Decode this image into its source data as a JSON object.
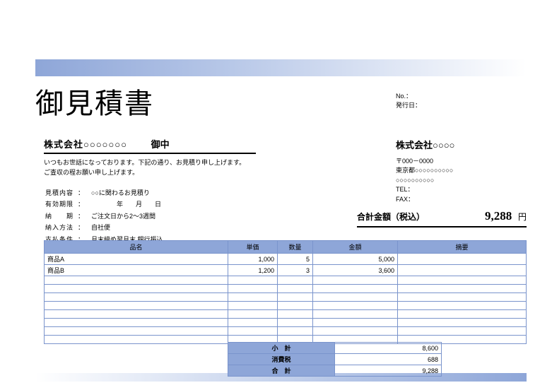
{
  "title": "御見積書",
  "meta": {
    "no_label": "No.：",
    "date_label": "発行日："
  },
  "client": {
    "name": "株式会社○○○○○○○",
    "honorific": "御中"
  },
  "greeting": {
    "line1": "いつもお世話になっております。下記の通り、お見積り申し上げます。",
    "line2": "ご査収の程お願い申し上げます。"
  },
  "terms": {
    "subject_label": "見積内容",
    "subject_value": "○○に関わるお見積り",
    "valid_label": "有効期限",
    "valid_value": "　　　　年　　月　　日",
    "delivery_label": "納　　期",
    "delivery_value": "ご注文日から2～3週間",
    "method_label": "納入方法",
    "method_value": "自社便",
    "payment_label": "支払条件",
    "payment_value": "月末締め翌月末 銀行振込"
  },
  "sender": {
    "name": "株式会社○○○○",
    "postal": "〒000－0000",
    "addr1": "東京都○○○○○○○○○○",
    "addr2": "○○○○○○○○○○",
    "tel": "TEL：",
    "fax": "FAX："
  },
  "total": {
    "label": "合計金額（税込）",
    "amount": "9,288",
    "yen": "円"
  },
  "columns": {
    "name": "品名",
    "unit": "単価",
    "qty": "数量",
    "amount": "金額",
    "note": "摘要"
  },
  "items": [
    {
      "name": "商品A",
      "unit": "1,000",
      "qty": "5",
      "amount": "5,000",
      "note": ""
    },
    {
      "name": "商品B",
      "unit": "1,200",
      "qty": "3",
      "amount": "3,600",
      "note": ""
    }
  ],
  "empty_rows": 8,
  "totals": {
    "subtotal_label": "小　計",
    "subtotal_value": "8,600",
    "tax_label": "消費税",
    "tax_value": "688",
    "grand_label": "合　計",
    "grand_value": "9,288"
  },
  "colors": {
    "header_bg": "#8ea6d8",
    "border": "#7a94cc"
  }
}
